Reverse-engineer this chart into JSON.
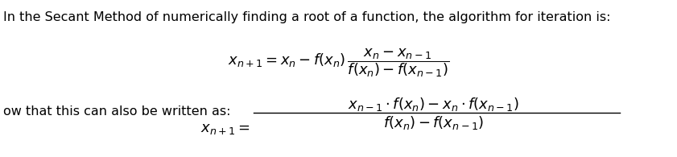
{
  "intro_text": "In the Secant Method of numerically finding a root of a function, the algorithm for iteration is:",
  "second_text": "ow that this can also be written as:",
  "background_color": "#ffffff",
  "text_color": "#000000",
  "intro_fontsize": 11.5,
  "formula_fontsize": 13,
  "formula1": "$x_{n+1} = x_n - f(x_n)\\,\\dfrac{x_n - x_{n-1}}{f(x_n) - f(x_{n-1})}$",
  "formula2_lhs": "$x_{n+1} =$",
  "formula2_num": "$x_{n-1} \\cdot f(x_n) - x_n \\cdot f(x_{n-1})$",
  "formula2_den": "$f(x_n) - f(x_{n-1})$",
  "fig_width": 8.41,
  "fig_height": 1.95,
  "dpi": 100
}
